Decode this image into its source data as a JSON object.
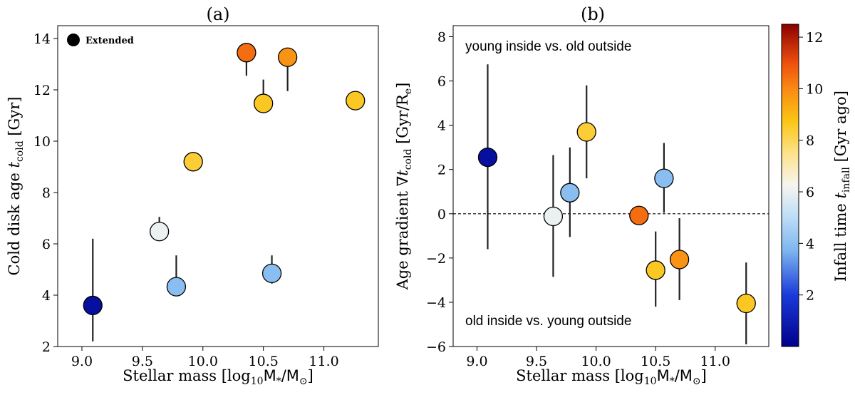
{
  "chart_data": [
    {
      "type": "scatter",
      "panel_label": "(a)",
      "xlabel": "Stellar mass [log",
      "xlabel_sub": "10",
      "xlabel_rest": "M",
      "xlabel_star": "*",
      "xlabel_tail": "/M",
      "xlabel_sun": "⊙",
      "xlabel_end": "]",
      "ylabel": "Cold disk age ",
      "ylabel_var": "t",
      "ylabel_sub": "cold",
      "ylabel_unit": " [Gyr]",
      "xlim": [
        8.8,
        11.45
      ],
      "ylim": [
        2,
        14.5
      ],
      "xticks": [
        "9.0",
        "9.5",
        "10.0",
        "10.5",
        "11.0"
      ],
      "xtick_values": [
        9.0,
        9.5,
        10.0,
        10.5,
        11.0
      ],
      "yticks": [
        "2",
        "4",
        "6",
        "8",
        "10",
        "12",
        "14"
      ],
      "ytick_values": [
        2,
        4,
        6,
        8,
        10,
        12,
        14
      ],
      "legend": {
        "label": "Extended",
        "color": "#000000"
      },
      "points": [
        {
          "x": 9.09,
          "y": 3.6,
          "err_lo": 2.2,
          "err_hi": 6.2,
          "infall": 0.5
        },
        {
          "x": 9.64,
          "y": 6.48,
          "err_lo": 6.48,
          "err_hi": 7.05,
          "infall": 6.0
        },
        {
          "x": 9.78,
          "y": 4.33,
          "err_lo": 4.33,
          "err_hi": 5.55,
          "infall": 4.0
        },
        {
          "x": 9.92,
          "y": 9.2,
          "err_lo": 9.2,
          "err_hi": 9.55,
          "infall": 8.4
        },
        {
          "x": 10.36,
          "y": 13.45,
          "err_lo": 12.55,
          "err_hi": 13.45,
          "infall": 10.5
        },
        {
          "x": 10.5,
          "y": 11.47,
          "err_lo": 11.47,
          "err_hi": 12.4,
          "infall": 8.6
        },
        {
          "x": 10.57,
          "y": 4.85,
          "err_lo": 4.45,
          "err_hi": 5.55,
          "infall": 4.0
        },
        {
          "x": 10.7,
          "y": 13.27,
          "err_lo": 11.95,
          "err_hi": 13.27,
          "infall": 9.8
        },
        {
          "x": 11.26,
          "y": 11.58,
          "err_lo": 11.58,
          "err_hi": 11.58,
          "infall": 8.6
        }
      ]
    },
    {
      "type": "scatter",
      "panel_label": "(b)",
      "xlabel": "Stellar mass [log",
      "xlabel_sub": "10",
      "xlabel_rest": "M",
      "xlabel_star": "*",
      "xlabel_tail": "/M",
      "xlabel_sun": "⊙",
      "xlabel_end": "]",
      "ylabel": "Age gradient ∇",
      "ylabel_var": "t",
      "ylabel_sub": "cold",
      "ylabel_unit": " [Gyr/R",
      "ylabel_unit_sub": "e",
      "ylabel_unit_end": "]",
      "xlim": [
        8.8,
        11.45
      ],
      "ylim": [
        -6,
        8.5
      ],
      "xticks": [
        "9.0",
        "9.5",
        "10.0",
        "10.5",
        "11.0"
      ],
      "xtick_values": [
        9.0,
        9.5,
        10.0,
        10.5,
        11.0
      ],
      "yticks": [
        "−6",
        "−4",
        "−2",
        "0",
        "2",
        "4",
        "6",
        "8"
      ],
      "ytick_values": [
        -6,
        -4,
        -2,
        0,
        2,
        4,
        6,
        8
      ],
      "reference_line": 0,
      "annotation_top": "young inside vs. old outside",
      "annotation_bottom": "old inside vs. young outside",
      "points": [
        {
          "x": 9.09,
          "y": 2.55,
          "err_lo": -1.6,
          "err_hi": 6.75,
          "infall": 0.5
        },
        {
          "x": 9.64,
          "y": -0.12,
          "err_lo": -2.85,
          "err_hi": 2.65,
          "infall": 6.0
        },
        {
          "x": 9.78,
          "y": 0.95,
          "err_lo": -1.05,
          "err_hi": 3.0,
          "infall": 4.0
        },
        {
          "x": 9.92,
          "y": 3.7,
          "err_lo": 1.6,
          "err_hi": 5.8,
          "infall": 8.4
        },
        {
          "x": 10.36,
          "y": -0.08,
          "err_lo": -0.08,
          "err_hi": -0.08,
          "infall": 10.5
        },
        {
          "x": 10.5,
          "y": -2.55,
          "err_lo": -4.2,
          "err_hi": -0.8,
          "infall": 8.6
        },
        {
          "x": 10.57,
          "y": 1.6,
          "err_lo": 0.05,
          "err_hi": 3.2,
          "infall": 4.0
        },
        {
          "x": 10.7,
          "y": -2.07,
          "err_lo": -3.9,
          "err_hi": -0.2,
          "infall": 9.8
        },
        {
          "x": 11.26,
          "y": -4.05,
          "err_lo": -5.9,
          "err_hi": -2.2,
          "infall": 8.6
        }
      ]
    }
  ],
  "colorbar": {
    "label": "Infall time ",
    "label_var": "t",
    "label_sub": "infall",
    "label_unit": " [Gyr ago]",
    "range": [
      0,
      12.5
    ],
    "ticks": [
      "2",
      "4",
      "6",
      "8",
      "10",
      "12"
    ],
    "tick_values": [
      2,
      4,
      6,
      8,
      10,
      12
    ]
  }
}
